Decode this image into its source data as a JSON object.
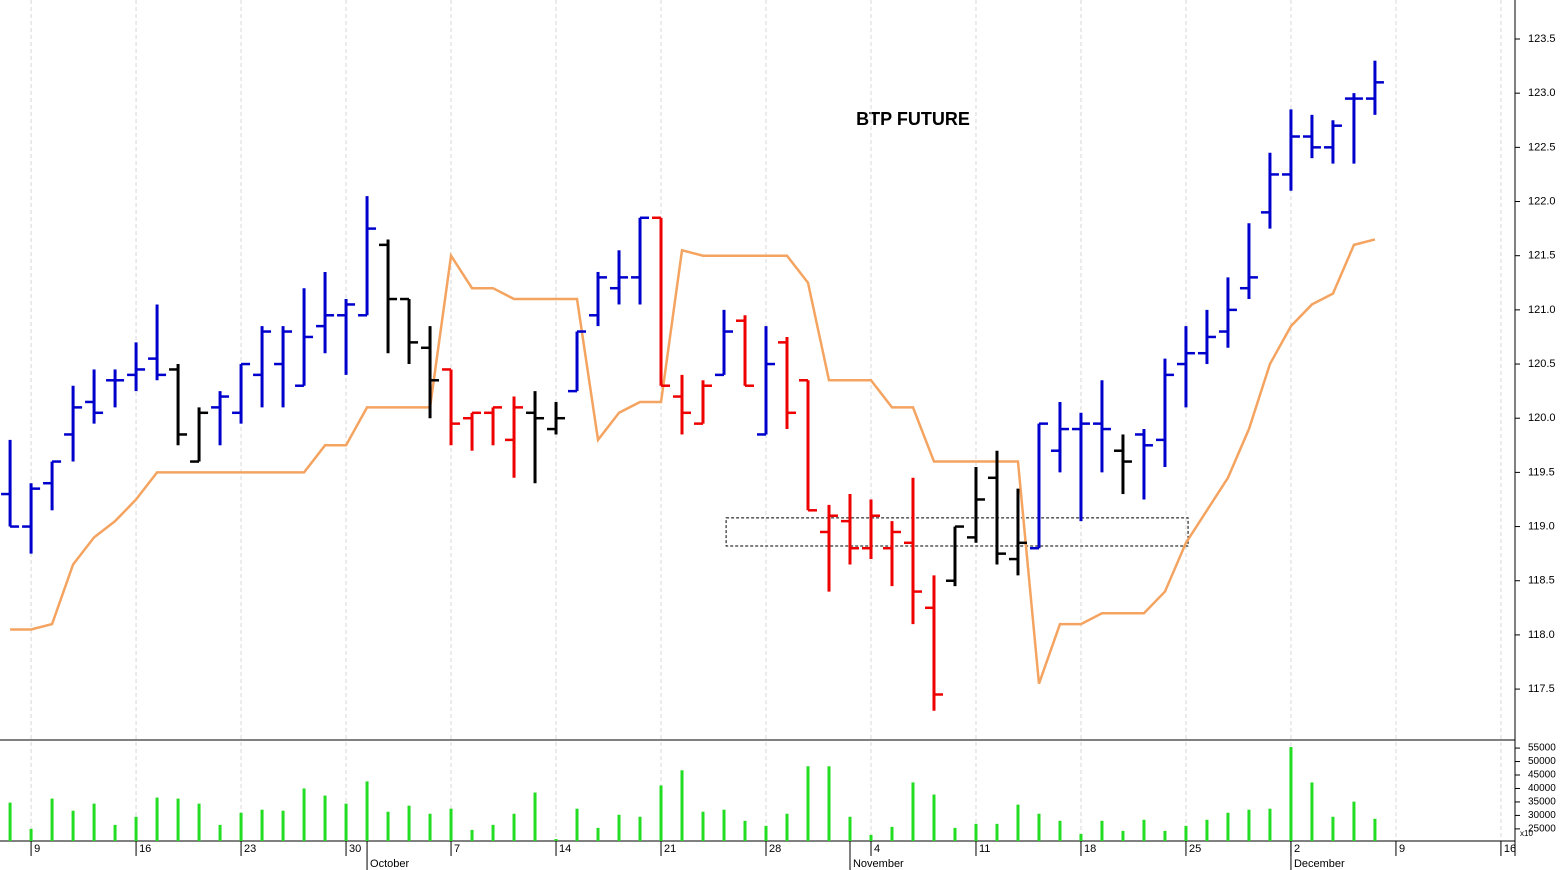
{
  "chart_data": [
    {
      "type": "ohlc",
      "title": "BTP FUTURE",
      "open": [
        119.3,
        119.0,
        119.4,
        119.85,
        120.15,
        120.35,
        120.4,
        120.55,
        120.45,
        119.6,
        120.1,
        120.05,
        120.4,
        120.5,
        120.3,
        120.85,
        120.95,
        120.95,
        121.6,
        121.1,
        120.65,
        120.45,
        120.0,
        120.05,
        119.8,
        120.05,
        119.9,
        120.25,
        120.95,
        121.2,
        121.3,
        121.85,
        120.2,
        119.95,
        120.4,
        120.9,
        119.85,
        120.7,
        120.35,
        118.95,
        119.05,
        118.8,
        118.8,
        118.85,
        118.25,
        118.5,
        118.9,
        119.45,
        118.7,
        118.8,
        119.7,
        119.9,
        119.95,
        119.7,
        119.85,
        119.8,
        120.5,
        120.6,
        120.8,
        121.2,
        121.9,
        122.25,
        122.6,
        122.5,
        122.95,
        122.95
      ],
      "high": [
        119.8,
        119.4,
        119.6,
        120.3,
        120.45,
        120.45,
        120.7,
        121.05,
        120.5,
        120.1,
        120.25,
        120.5,
        120.85,
        120.85,
        121.2,
        121.35,
        121.1,
        122.05,
        121.65,
        121.1,
        120.85,
        120.45,
        120.05,
        120.1,
        120.2,
        120.25,
        120.15,
        120.8,
        121.35,
        121.55,
        121.85,
        121.85,
        120.4,
        120.35,
        121.0,
        120.95,
        120.85,
        120.75,
        120.35,
        119.2,
        119.3,
        119.25,
        119.05,
        119.45,
        118.55,
        119.0,
        119.55,
        119.7,
        119.35,
        119.95,
        120.15,
        120.05,
        120.35,
        119.85,
        119.9,
        120.55,
        120.85,
        121.0,
        121.3,
        121.8,
        122.45,
        122.85,
        122.8,
        122.75,
        123.0,
        123.3
      ],
      "low": [
        119.0,
        118.75,
        119.15,
        119.6,
        119.95,
        120.1,
        120.25,
        120.35,
        119.75,
        119.6,
        119.75,
        119.95,
        120.1,
        120.1,
        120.3,
        120.6,
        120.4,
        120.95,
        120.6,
        120.5,
        120.0,
        119.75,
        119.7,
        119.75,
        119.45,
        119.4,
        119.85,
        120.25,
        120.85,
        121.05,
        121.05,
        120.3,
        119.85,
        119.95,
        120.4,
        120.3,
        119.85,
        119.9,
        119.15,
        118.4,
        118.65,
        118.7,
        118.45,
        118.1,
        117.3,
        118.45,
        118.85,
        118.65,
        118.55,
        118.8,
        119.5,
        119.05,
        119.5,
        119.3,
        119.25,
        119.55,
        120.1,
        120.5,
        120.65,
        121.1,
        121.75,
        122.1,
        122.4,
        122.35,
        122.35,
        122.8
      ],
      "close": [
        119.0,
        119.35,
        119.6,
        120.1,
        120.05,
        120.35,
        120.45,
        120.4,
        119.85,
        120.05,
        120.2,
        120.5,
        120.8,
        120.8,
        120.75,
        120.95,
        121.05,
        121.75,
        121.1,
        120.7,
        120.35,
        119.95,
        120.05,
        120.1,
        120.1,
        120.0,
        120.0,
        120.8,
        121.3,
        121.3,
        121.85,
        120.3,
        120.05,
        120.3,
        120.8,
        120.3,
        120.5,
        120.05,
        119.15,
        119.1,
        118.8,
        119.1,
        118.95,
        118.4,
        117.45,
        119.0,
        119.25,
        118.75,
        118.85,
        119.95,
        119.9,
        119.95,
        119.9,
        119.6,
        119.75,
        120.4,
        120.6,
        120.75,
        121.0,
        121.3,
        122.25,
        122.6,
        122.5,
        122.7,
        122.95,
        123.1
      ],
      "colors": [
        "#0000cc",
        "#0000cc",
        "#0000cc",
        "#0000cc",
        "#0000cc",
        "#0000cc",
        "#0000cc",
        "#0000cc",
        "#000000",
        "#000000",
        "#0000cc",
        "#0000cc",
        "#0000cc",
        "#0000cc",
        "#0000cc",
        "#0000cc",
        "#0000cc",
        "#0000cc",
        "#000000",
        "#000000",
        "#000000",
        "#ee0000",
        "#ee0000",
        "#ee0000",
        "#ee0000",
        "#000000",
        "#000000",
        "#0000cc",
        "#0000cc",
        "#0000cc",
        "#0000cc",
        "#ee0000",
        "#ee0000",
        "#ee0000",
        "#0000cc",
        "#ee0000",
        "#0000cc",
        "#ee0000",
        "#ee0000",
        "#ee0000",
        "#ee0000",
        "#ee0000",
        "#ee0000",
        "#ee0000",
        "#ee0000",
        "#000000",
        "#000000",
        "#000000",
        "#000000",
        "#0000cc",
        "#0000cc",
        "#0000cc",
        "#0000cc",
        "#000000",
        "#0000cc",
        "#0000cc",
        "#0000cc",
        "#0000cc",
        "#0000cc",
        "#0000cc",
        "#0000cc",
        "#0000cc",
        "#0000cc",
        "#0000cc",
        "#0000cc",
        "#0000cc"
      ],
      "line": {
        "color": "#f4a460",
        "values": [
          118.05,
          118.05,
          118.1,
          118.65,
          118.9,
          119.05,
          119.25,
          119.5,
          119.5,
          119.5,
          119.5,
          119.5,
          119.5,
          119.5,
          119.5,
          119.75,
          119.75,
          120.1,
          120.1,
          120.1,
          120.1,
          121.5,
          121.2,
          121.2,
          121.1,
          121.1,
          121.1,
          121.1,
          119.8,
          120.05,
          120.15,
          120.15,
          121.55,
          121.5,
          121.5,
          121.5,
          121.5,
          121.5,
          121.25,
          120.35,
          120.35,
          120.35,
          120.1,
          120.1,
          119.6,
          119.6,
          119.6,
          119.6,
          119.6,
          117.55,
          118.1,
          118.1,
          118.2,
          118.2,
          118.2,
          118.4,
          118.85,
          119.15,
          119.45,
          119.9,
          120.5,
          120.85,
          121.05,
          121.15,
          121.6,
          121.65
        ]
      },
      "zone": {
        "xlim": [
          34.1,
          56.1
        ],
        "ylim": [
          118.82,
          119.08
        ]
      },
      "xlim": [
        -0.48,
        71.67
      ],
      "xticks": [
        {
          "value": 1,
          "label": "9"
        },
        {
          "value": 6,
          "label": "16"
        },
        {
          "value": 11,
          "label": "23"
        },
        {
          "value": 16,
          "label": "30"
        },
        {
          "value": 21,
          "label": "7"
        },
        {
          "value": 26,
          "label": "14"
        },
        {
          "value": 31,
          "label": "21"
        },
        {
          "value": 36,
          "label": "28"
        },
        {
          "value": 41,
          "label": "4"
        },
        {
          "value": 46,
          "label": "11"
        },
        {
          "value": 51,
          "label": "18"
        },
        {
          "value": 56,
          "label": "25"
        },
        {
          "value": 61,
          "label": "2"
        },
        {
          "value": 66,
          "label": "9"
        },
        {
          "value": 71,
          "label": "16"
        }
      ],
      "month_ticks": [
        {
          "value": 17,
          "label": "October"
        },
        {
          "value": 40,
          "label": "November"
        },
        {
          "value": 61,
          "label": "December"
        }
      ],
      "ylim": [
        117.03,
        123.86
      ],
      "yticks": [
        117.5,
        {
          "value": 118,
          "label": "118.0"
        },
        118.5,
        {
          "value": 119,
          "label": "119.0"
        },
        119.5,
        {
          "value": 120,
          "label": "120.0"
        },
        120.5,
        {
          "value": 121,
          "label": "121.0"
        },
        121.5,
        {
          "value": 122,
          "label": "122.0"
        },
        122.5,
        {
          "value": 123,
          "label": "123.0"
        },
        123.5
      ],
      "grid": true
    },
    {
      "type": "bar",
      "color": "#22dd22",
      "unit": "x10",
      "values": [
        34750,
        25000,
        36250,
        31750,
        34375,
        26500,
        29500,
        36625,
        36250,
        34375,
        26500,
        31000,
        32125,
        31750,
        40000,
        37375,
        34375,
        42625,
        31375,
        33625,
        30625,
        32500,
        24625,
        26500,
        30625,
        38500,
        21250,
        32500,
        25375,
        30250,
        29500,
        41125,
        46750,
        31375,
        32125,
        28000,
        26125,
        30625,
        48250,
        48250,
        29500,
        22750,
        25750,
        42250,
        37750,
        25375,
        26875,
        26875,
        34000,
        30625,
        28000,
        23125,
        28000,
        24250,
        28375,
        24250,
        26125,
        28375,
        31000,
        32125,
        32500,
        55375,
        42250,
        29500,
        35125,
        28750
      ],
      "ylim": [
        20500,
        58000
      ],
      "yticks": [
        25000,
        30000,
        35000,
        40000,
        45000,
        50000,
        55000
      ]
    }
  ]
}
